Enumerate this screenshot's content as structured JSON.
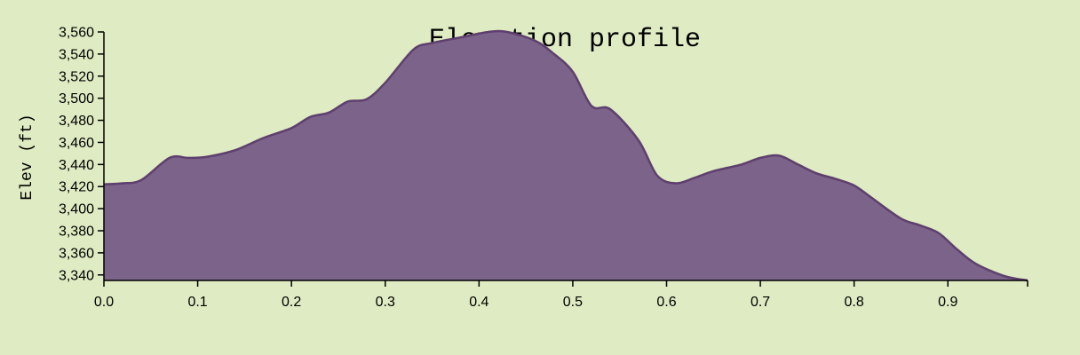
{
  "chart_data": {
    "type": "area",
    "title": "Elevation profile",
    "xlabel": "",
    "ylabel": "Elev (ft)",
    "xlim": [
      0,
      0.985
    ],
    "ylim": [
      3335,
      3560
    ],
    "x_ticks": [
      "0.0",
      "0.1",
      "0.2",
      "0.3",
      "0.4",
      "0.5",
      "0.6",
      "0.7",
      "0.8",
      "0.9"
    ],
    "y_ticks": [
      "3,340",
      "3,360",
      "3,380",
      "3,400",
      "3,420",
      "3,440",
      "3,460",
      "3,480",
      "3,500",
      "3,520",
      "3,540",
      "3,560"
    ],
    "grid": false,
    "colors": {
      "fill": "#7b6389",
      "line": "#5e3f6e",
      "background": "#dfebc2"
    },
    "x": [
      0.0,
      0.02,
      0.04,
      0.07,
      0.09,
      0.11,
      0.14,
      0.17,
      0.2,
      0.22,
      0.24,
      0.26,
      0.28,
      0.3,
      0.33,
      0.35,
      0.38,
      0.41,
      0.43,
      0.46,
      0.48,
      0.5,
      0.52,
      0.54,
      0.57,
      0.59,
      0.61,
      0.63,
      0.65,
      0.68,
      0.7,
      0.72,
      0.74,
      0.76,
      0.78,
      0.8,
      0.82,
      0.85,
      0.87,
      0.89,
      0.91,
      0.93,
      0.96,
      0.985
    ],
    "y": [
      3422,
      3423,
      3426,
      3446,
      3446,
      3447,
      3453,
      3464,
      3473,
      3483,
      3487,
      3497,
      3499,
      3514,
      3544,
      3550,
      3555,
      3560,
      3560,
      3552,
      3540,
      3524,
      3493,
      3490,
      3462,
      3430,
      3423,
      3428,
      3434,
      3440,
      3446,
      3448,
      3440,
      3432,
      3427,
      3421,
      3409,
      3391,
      3385,
      3378,
      3363,
      3350,
      3339,
      3335
    ]
  }
}
